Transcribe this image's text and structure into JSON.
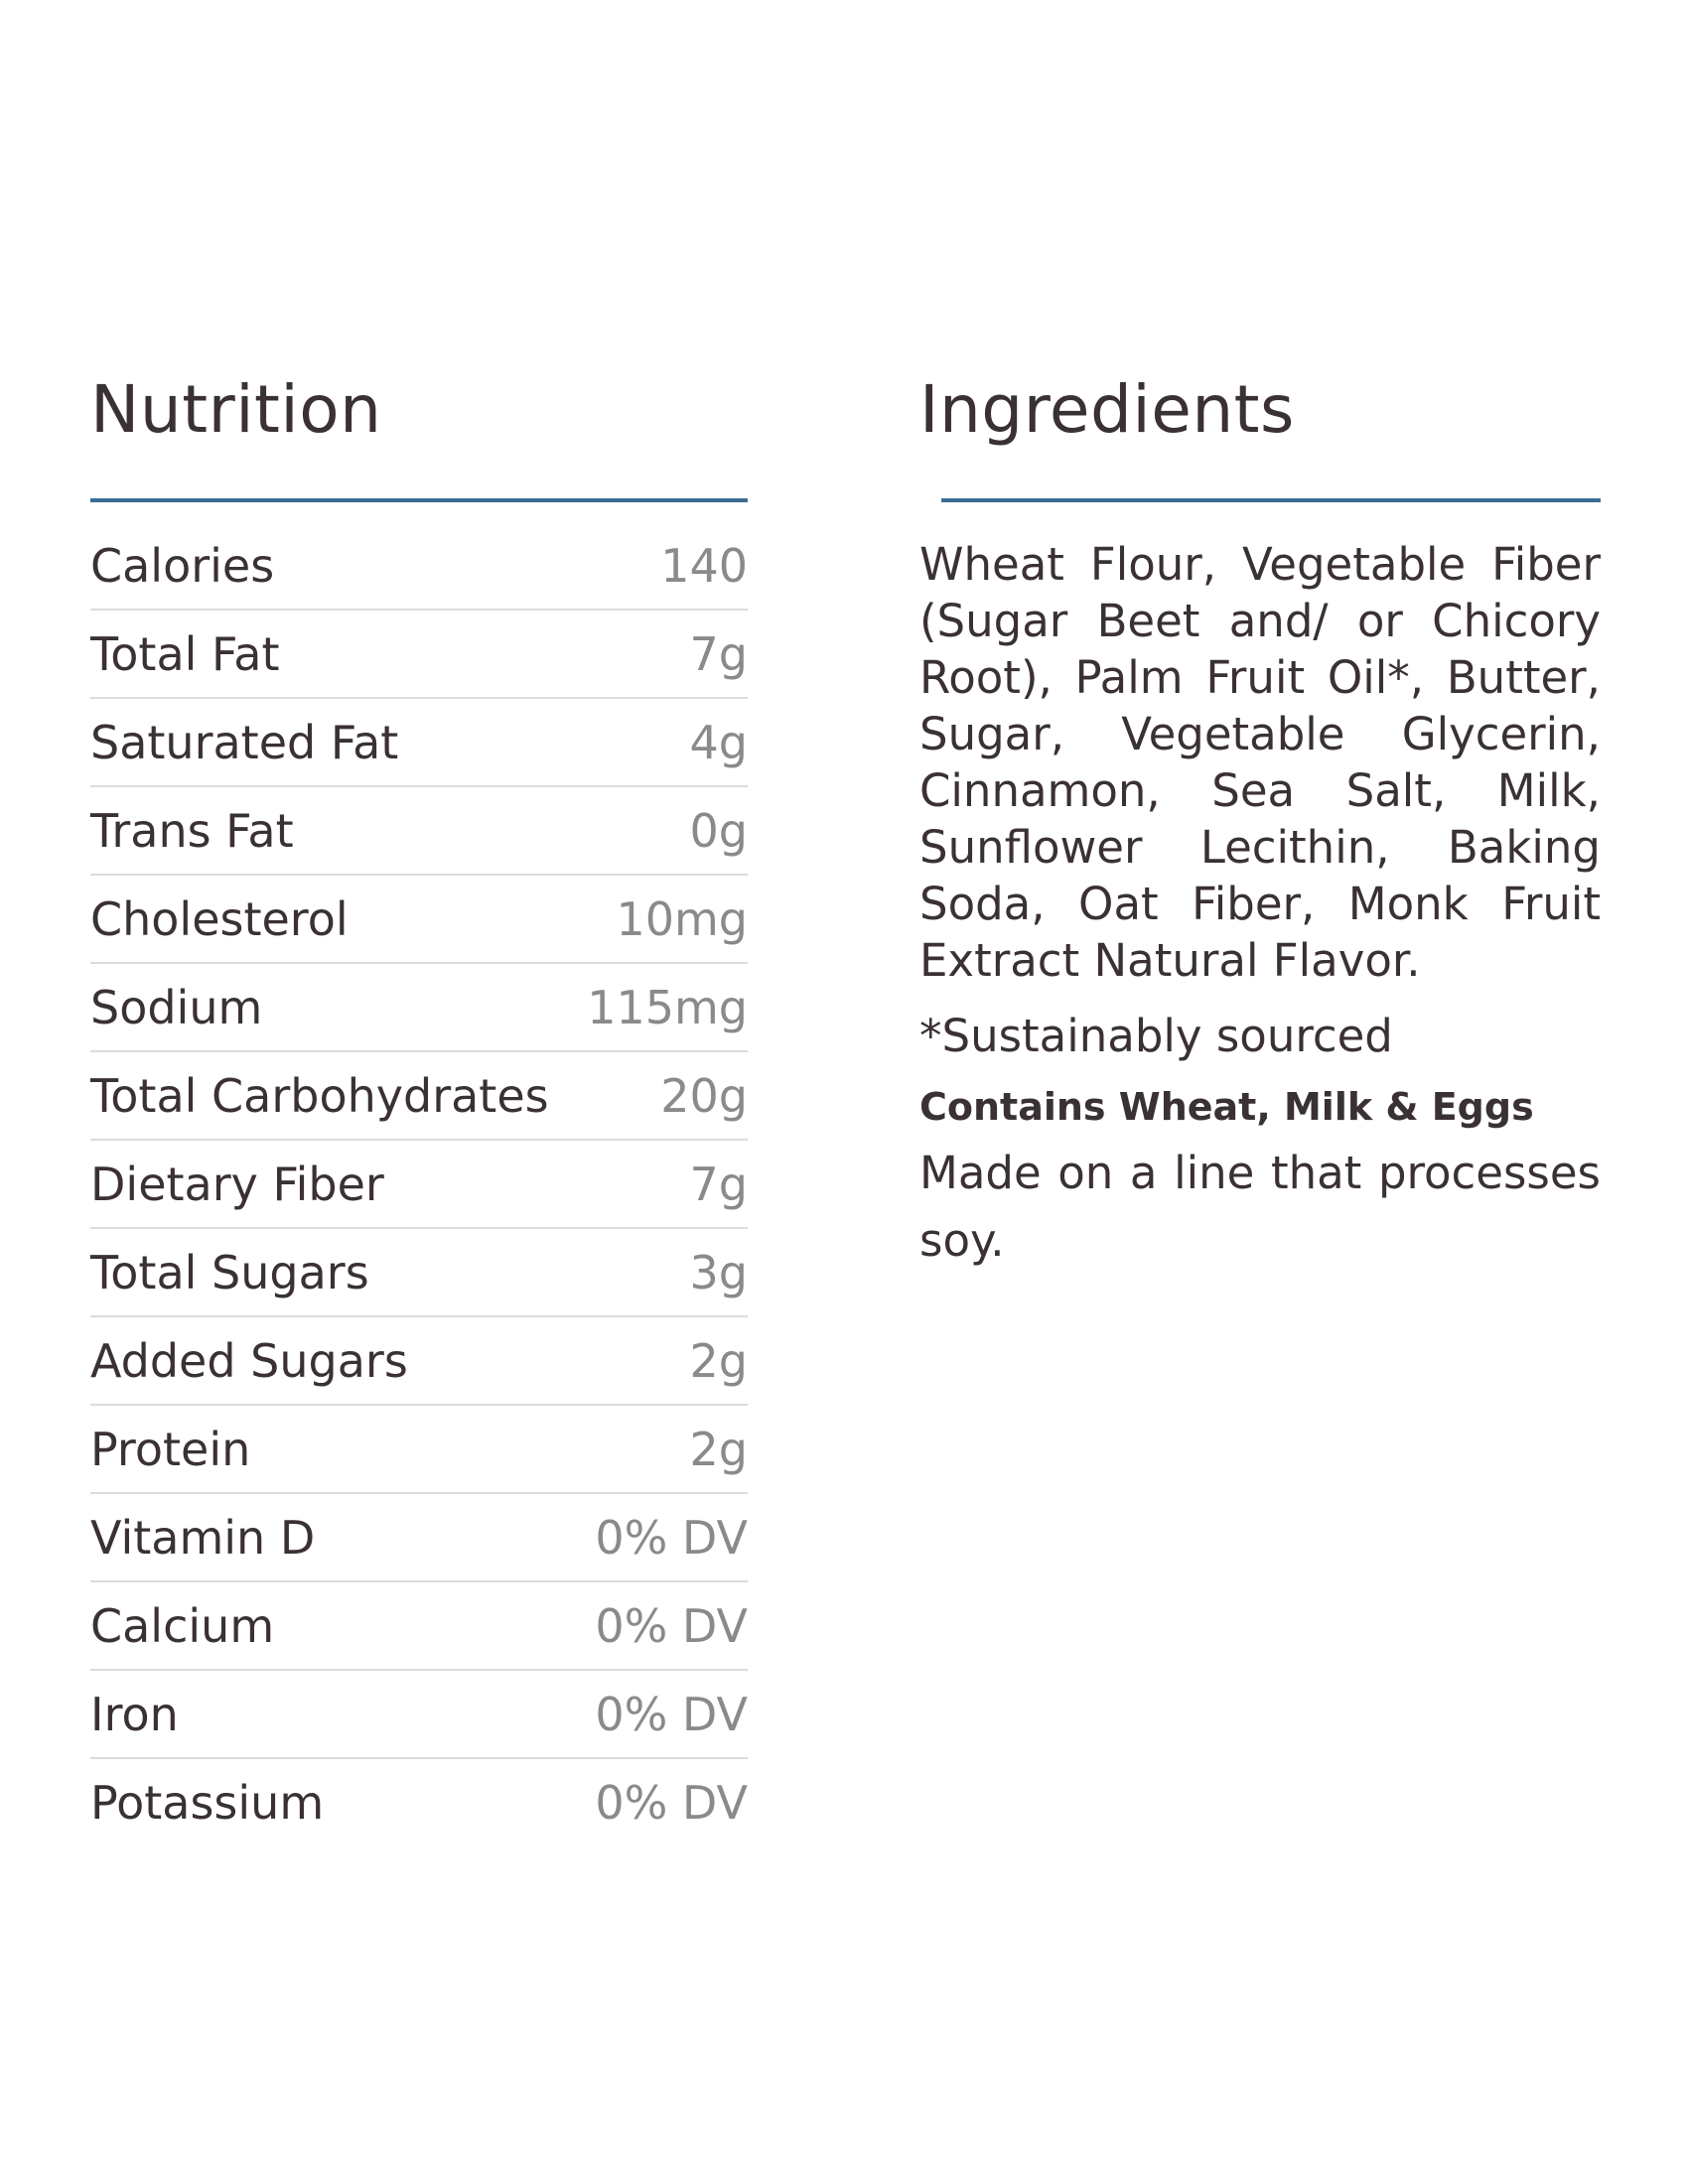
{
  "nutrition": {
    "title": "Nutrition",
    "rows": [
      {
        "label": "Calories",
        "value": "140"
      },
      {
        "label": "Total Fat",
        "value": "7g"
      },
      {
        "label": "Saturated Fat",
        "value": "4g"
      },
      {
        "label": "Trans Fat",
        "value": "0g"
      },
      {
        "label": "Cholesterol",
        "value": "10mg"
      },
      {
        "label": "Sodium",
        "value": "115mg"
      },
      {
        "label": "Total Carbohydrates",
        "value": "20g"
      },
      {
        "label": "Dietary Fiber",
        "value": "7g"
      },
      {
        "label": "Total Sugars",
        "value": "3g"
      },
      {
        "label": "Added Sugars",
        "value": "2g"
      },
      {
        "label": "Protein",
        "value": "2g"
      },
      {
        "label": "Vitamin D",
        "value": "0% DV"
      },
      {
        "label": "Calcium",
        "value": "0% DV"
      },
      {
        "label": "Iron",
        "value": "0% DV"
      },
      {
        "label": "Potassium",
        "value": "0% DV"
      }
    ]
  },
  "ingredients": {
    "title": "Ingredients",
    "text": "Wheat Flour, Vegetable Fiber (Sugar Beet and/ or Chicory Root), Palm Fruit Oil*, Butter, Sugar, Vegetable Glycerin, Cinnamon, Sea Salt, Milk, Sunflower Lecithin, Baking Soda, Oat Fiber, Monk Fruit Extract Natural Flavor.",
    "note": "*Sustainably sourced",
    "allergen": "Contains Wheat, Milk & Eggs",
    "processing": "Made on a line that processes soy."
  },
  "colors": {
    "accent_rule": "#3a6e96",
    "text": "#3a3133",
    "value_text": "#8a8a8a",
    "divider": "#dcdcdc"
  }
}
